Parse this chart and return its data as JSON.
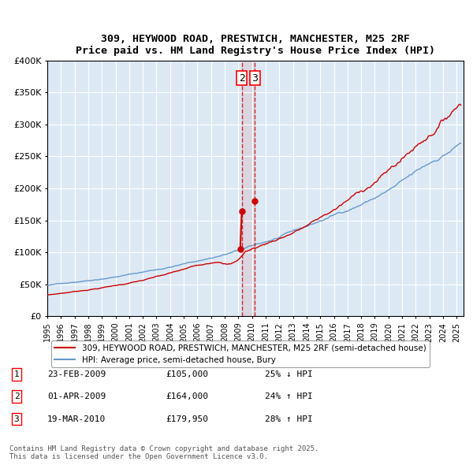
{
  "title_line1": "309, HEYWOOD ROAD, PRESTWICH, MANCHESTER, M25 2RF",
  "title_line2": "Price paid vs. HM Land Registry's House Price Index (HPI)",
  "ylabel_ticks": [
    "£0",
    "£50K",
    "£100K",
    "£150K",
    "£200K",
    "£250K",
    "£300K",
    "£350K",
    "£400K"
  ],
  "ytick_values": [
    0,
    50000,
    100000,
    150000,
    200000,
    250000,
    300000,
    350000,
    400000
  ],
  "ylim": [
    0,
    400000
  ],
  "xlim_start": 1995.0,
  "xlim_end": 2025.5,
  "xticks": [
    1995,
    1996,
    1997,
    1998,
    1999,
    2000,
    2001,
    2002,
    2003,
    2004,
    2005,
    2006,
    2007,
    2008,
    2009,
    2010,
    2011,
    2012,
    2013,
    2014,
    2015,
    2016,
    2017,
    2018,
    2019,
    2020,
    2021,
    2022,
    2023,
    2024,
    2025
  ],
  "bg_color": "#dce9f5",
  "plot_bg_color": "#dce9f5",
  "grid_color": "#ffffff",
  "red_line_color": "#cc0000",
  "blue_line_color": "#6699cc",
  "transaction_marker_color": "#cc0000",
  "vline_color": "#cc0000",
  "vband_color": "#cc0000",
  "transactions": [
    {
      "date_float": 2009.14,
      "price": 105000,
      "label": "1"
    },
    {
      "date_float": 2009.25,
      "price": 164000,
      "label": "2"
    },
    {
      "date_float": 2010.22,
      "price": 179950,
      "label": "3"
    }
  ],
  "legend_entries": [
    "309, HEYWOOD ROAD, PRESTWICH, MANCHESTER, M25 2RF (semi-detached house)",
    "HPI: Average price, semi-detached house, Bury"
  ],
  "table_rows": [
    {
      "num": "1",
      "date": "23-FEB-2009",
      "price": "£105,000",
      "change": "25% ↓ HPI"
    },
    {
      "num": "2",
      "date": "01-APR-2009",
      "price": "£164,000",
      "change": "24% ↑ HPI"
    },
    {
      "num": "3",
      "date": "19-MAR-2010",
      "price": "£179,950",
      "change": "28% ↑ HPI"
    }
  ],
  "footer_text": "Contains HM Land Registry data © Crown copyright and database right 2025.\nThis data is licensed under the Open Government Licence v3.0."
}
